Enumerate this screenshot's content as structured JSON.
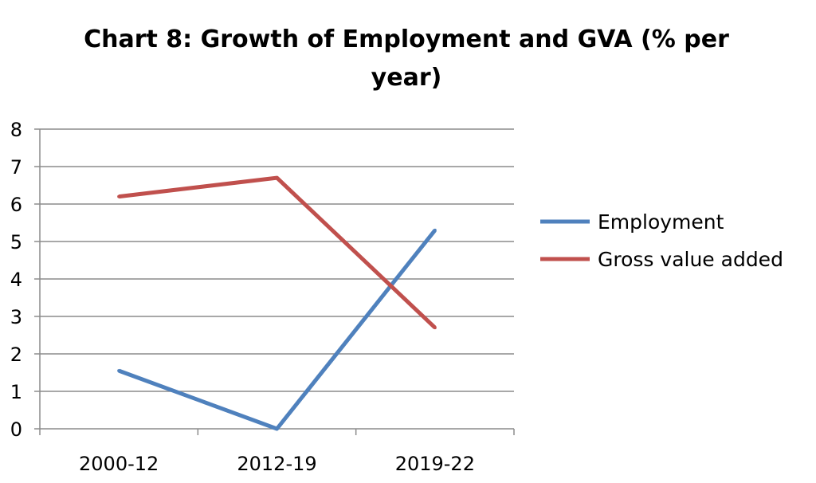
{
  "chart_data": {
    "type": "line",
    "title": "Chart 8: Growth of Employment and GVA (% per year)",
    "xlabel": "",
    "ylabel": "",
    "categories": [
      "2000-12",
      "2012-19",
      "2019-22"
    ],
    "ylim": [
      0,
      8
    ],
    "yticks": [
      "0",
      "1",
      "2",
      "3",
      "4",
      "5",
      "6",
      "7",
      "8"
    ],
    "grid": true,
    "legend_position": "right",
    "series": [
      {
        "name": "Employment",
        "values": [
          1.55,
          0.0,
          5.3
        ],
        "color": "#4f81bd"
      },
      {
        "name": "Gross value added",
        "values": [
          6.2,
          6.7,
          2.7
        ],
        "color": "#c0504d"
      }
    ]
  }
}
